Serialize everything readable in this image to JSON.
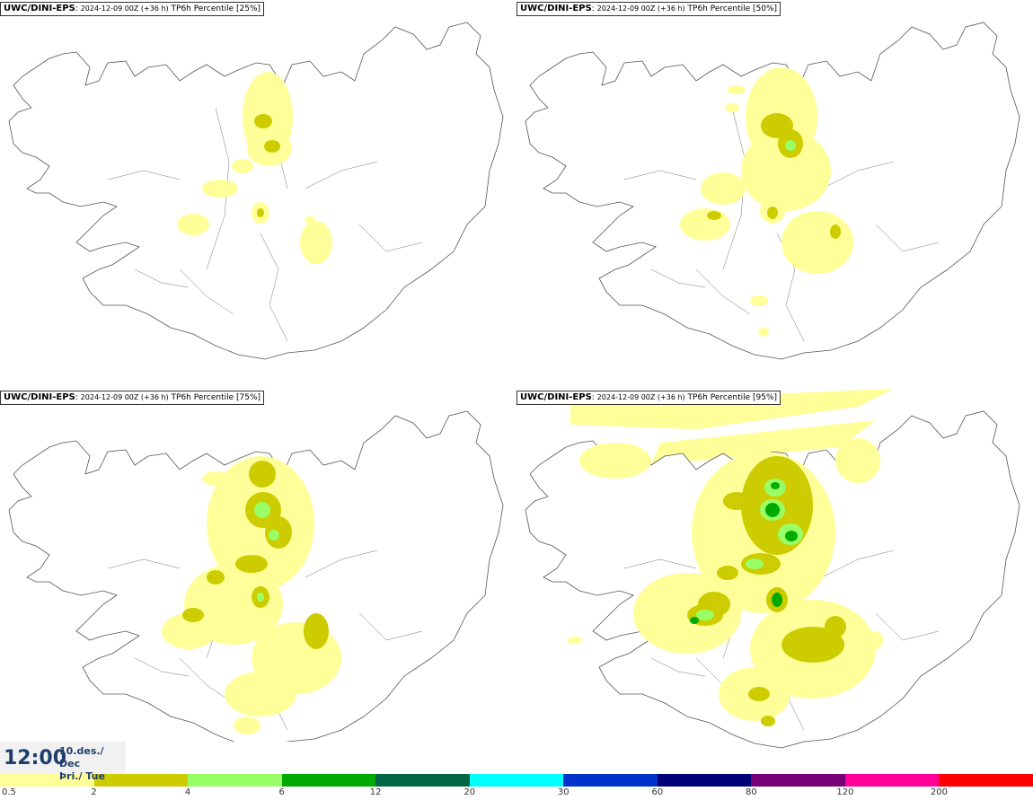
{
  "panels": [
    {
      "model": "UWC/DINI-EPS",
      "run": "2024-12-09 00Z (+36 h)",
      "field": "TP6h Percentile [25%]"
    },
    {
      "model": "UWC/DINI-EPS",
      "run": "2024-12-09 00Z (+36 h)",
      "field": "TP6h Percentile [50%]"
    },
    {
      "model": "UWC/DINI-EPS",
      "run": "2024-12-09 00Z (+36 h)",
      "field": "TP6h Percentile [75%]"
    },
    {
      "model": "UWC/DINI-EPS",
      "run": "2024-12-09 00Z (+36 h)",
      "field": "TP6h Percentile [95%]"
    }
  ],
  "valid": {
    "time": "12:00",
    "date_line1": "10.des./ Dec",
    "date_line2": "Þri./ Tue"
  },
  "legend": {
    "colors": [
      "#ffff99",
      "#cccc00",
      "#99ff66",
      "#00aa00",
      "#006644",
      "#00ffff",
      "#0033cc",
      "#000077",
      "#770077",
      "#ff0099",
      "#ff0000"
    ],
    "ticks": [
      "0.5",
      "2",
      "4",
      "6",
      "12",
      "20",
      "30",
      "60",
      "80",
      "120",
      "200"
    ]
  }
}
